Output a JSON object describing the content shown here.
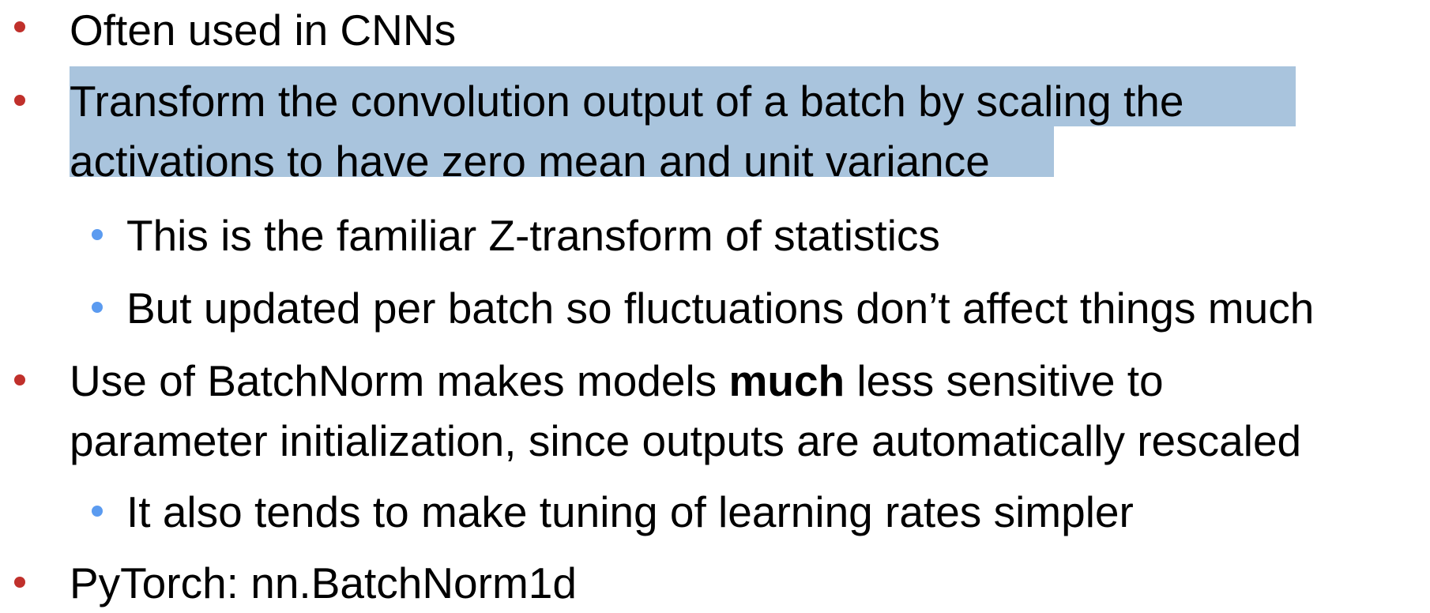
{
  "slide": {
    "bullets": [
      {
        "level": 1,
        "lines": [
          "Often used in CNNs"
        ]
      },
      {
        "level": 1,
        "highlighted": true,
        "lines": [
          "Transform the convolution output of a batch by scaling the",
          "activations to have zero mean and unit variance"
        ]
      },
      {
        "level": 2,
        "lines": [
          "This is the familiar Z-transform of statistics"
        ]
      },
      {
        "level": 2,
        "lines": [
          "But updated per batch so fluctuations don’t affect things much"
        ]
      },
      {
        "level": 1,
        "line1_before_bold": "Use of BatchNorm makes models ",
        "line1_bold": "much",
        "line1_after_bold": " less sensitive to",
        "line2": "parameter initialization, since outputs are automatically rescaled"
      },
      {
        "level": 2,
        "lines": [
          "It also tends to make tuning of learning rates simpler"
        ]
      },
      {
        "level": 1,
        "lines": [
          "PyTorch: nn.BatchNorm1d"
        ]
      }
    ]
  },
  "colors": {
    "level1_bullet": "#c0302b",
    "level2_bullet": "#5b9bf0",
    "selection_highlight": "#a9c4dd",
    "text": "#000000"
  }
}
